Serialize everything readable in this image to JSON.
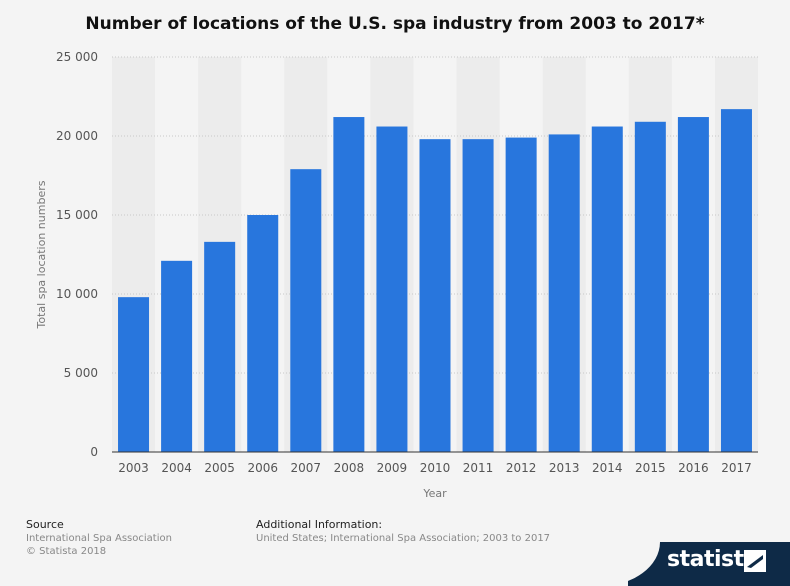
{
  "chart_data": {
    "type": "bar",
    "title": "Number of locations of the U.S. spa industry from 2003 to 2017*",
    "xlabel": "Year",
    "ylabel": "Total spa location numbers",
    "categories": [
      "2003",
      "2004",
      "2005",
      "2006",
      "2007",
      "2008",
      "2009",
      "2010",
      "2011",
      "2012",
      "2013",
      "2014",
      "2015",
      "2016",
      "2017"
    ],
    "values": [
      9800,
      12100,
      13300,
      15000,
      17900,
      21200,
      20600,
      19800,
      19800,
      19900,
      20100,
      20600,
      20900,
      21200,
      21700
    ],
    "ylim": [
      0,
      25000
    ],
    "yticks": [
      0,
      5000,
      10000,
      15000,
      20000,
      25000
    ],
    "ytick_labels": [
      "0",
      "5 000",
      "10 000",
      "15 000",
      "20 000",
      "25 000"
    ],
    "grid": true,
    "bar_color": "#2876dd"
  },
  "footer": {
    "source_heading": "Source",
    "source_lines": [
      "International Spa Association",
      "© Statista 2018"
    ],
    "info_heading": "Additional Information:",
    "info_text": "United States; International Spa Association; 2003 to 2017"
  },
  "brand": {
    "name": "statista"
  }
}
